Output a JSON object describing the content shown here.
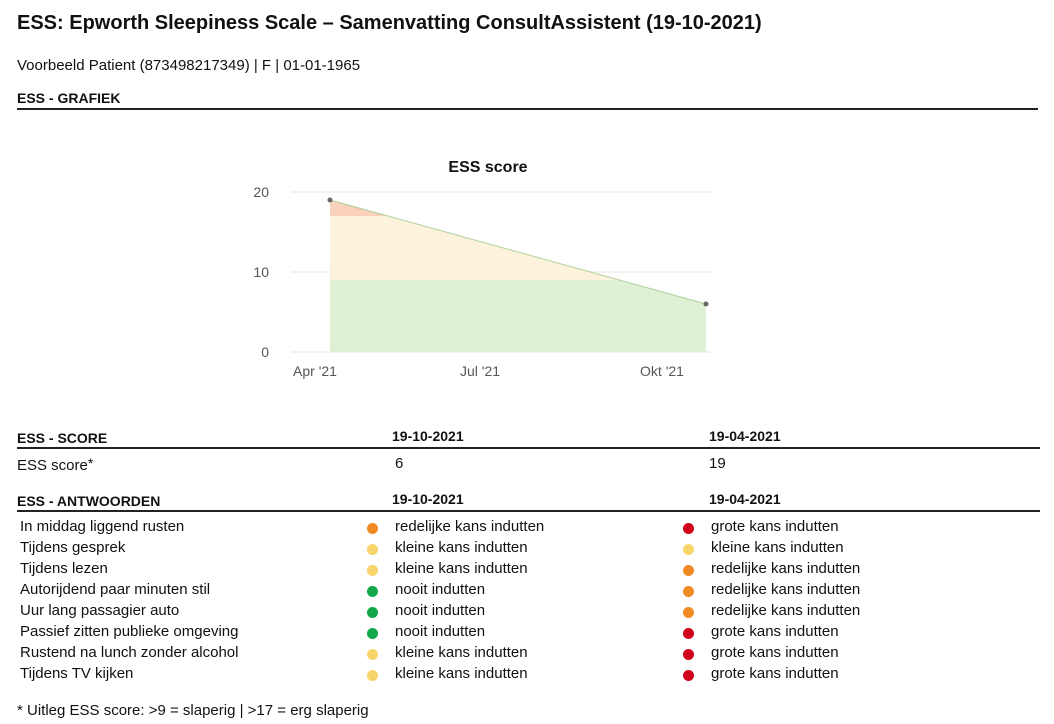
{
  "page": {
    "title": "ESS: Epworth Sleepiness Scale – Samenvatting ConsultAssistent (19-10-2021)",
    "patient": "Voorbeeld Patient (873498217349) | F | 01-01-1965"
  },
  "graph_section": {
    "heading": "ESS - GRAFIEK"
  },
  "chart_data": {
    "type": "area",
    "title": "ESS score",
    "x_ticks": [
      "Apr '21",
      "Jul '21",
      "Okt '21"
    ],
    "y_ticks": [
      "0",
      "10",
      "20"
    ],
    "ylim": [
      0,
      20
    ],
    "points": [
      {
        "date": "2021-04-19",
        "value": 19
      },
      {
        "date": "2021-10-19",
        "value": 6
      }
    ],
    "bands": [
      {
        "from": 0,
        "to": 9,
        "color": "#dff0d5"
      },
      {
        "from": 9,
        "to": 17,
        "color": "#fdf3dc"
      },
      {
        "from": 17,
        "to": 20,
        "color": "#f9d1bd"
      }
    ],
    "line_color": "#8fc37a",
    "grid": true
  },
  "score_section": {
    "heading": "ESS - SCORE",
    "date1": "19-10-2021",
    "date2": "19-04-2021",
    "row_label": "ESS score",
    "row_marker": "*",
    "value1": "6",
    "value2": "19"
  },
  "answers_section": {
    "heading": "ESS - ANTWOORDEN",
    "date1": "19-10-2021",
    "date2": "19-04-2021",
    "rows": [
      {
        "question": "In middag liggend rusten",
        "a1": "redelijke kans indutten",
        "c1": "#f08a24",
        "a2": "grote kans indutten",
        "c2": "#d0021b"
      },
      {
        "question": "Tijdens gesprek",
        "a1": "kleine kans indutten",
        "c1": "#f7d56a",
        "a2": "kleine kans indutten",
        "c2": "#f7d56a"
      },
      {
        "question": "Tijdens lezen",
        "a1": "kleine kans indutten",
        "c1": "#f7d56a",
        "a2": "redelijke kans indutten",
        "c2": "#f08a24"
      },
      {
        "question": "Autorijdend paar minuten stil",
        "a1": "nooit indutten",
        "c1": "#12a84a",
        "a2": "redelijke kans indutten",
        "c2": "#f08a24"
      },
      {
        "question": "Uur lang passagier auto",
        "a1": "nooit indutten",
        "c1": "#12a84a",
        "a2": "redelijke kans indutten",
        "c2": "#f08a24"
      },
      {
        "question": "Passief zitten publieke omgeving",
        "a1": "nooit indutten",
        "c1": "#12a84a",
        "a2": "grote kans indutten",
        "c2": "#d0021b"
      },
      {
        "question": "Rustend na lunch zonder alcohol",
        "a1": "kleine kans indutten",
        "c1": "#f7d56a",
        "a2": "grote kans indutten",
        "c2": "#d0021b"
      },
      {
        "question": "Tijdens TV kijken",
        "a1": "kleine kans indutten",
        "c1": "#f7d56a",
        "a2": "grote kans indutten",
        "c2": "#d0021b"
      }
    ]
  },
  "footnote": "* Uitleg ESS score: >9 = slaperig | >17 = erg slaperig"
}
